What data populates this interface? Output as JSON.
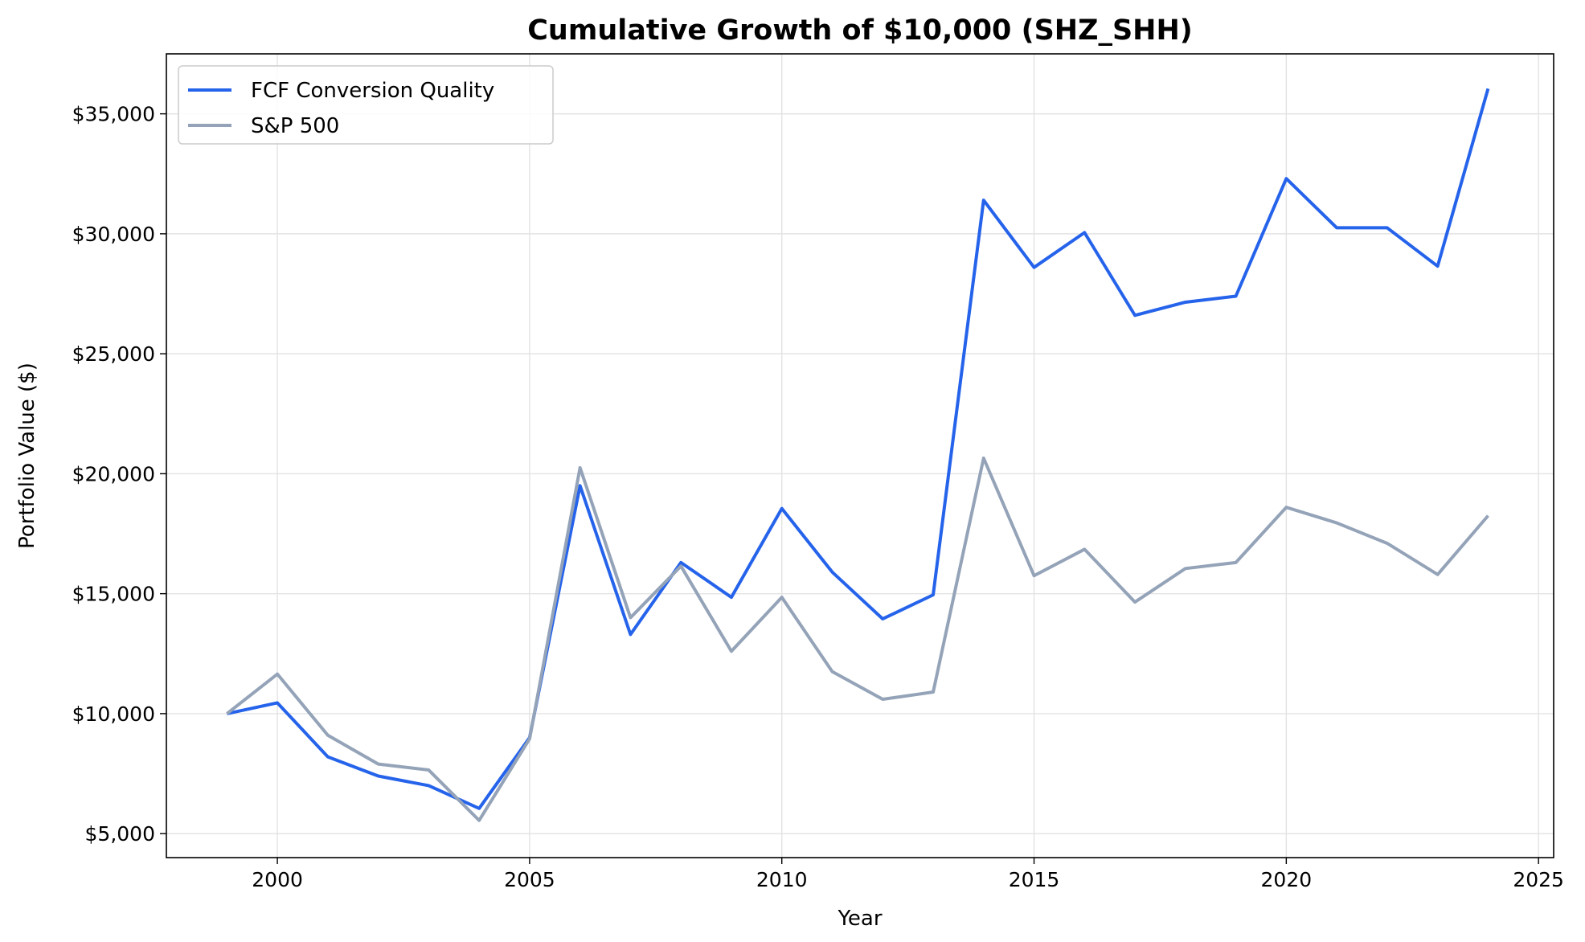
{
  "chart_data": {
    "type": "line",
    "title": "Cumulative Growth of $10,000 (SHZ_SHH)",
    "xlabel": "Year",
    "ylabel": "Portfolio Value ($)",
    "xlim": [
      1997.8,
      2025.3
    ],
    "ylim": [
      4000,
      37500
    ],
    "x_ticks": [
      2000,
      2005,
      2010,
      2015,
      2020,
      2025
    ],
    "x_tick_labels": [
      "2000",
      "2005",
      "2010",
      "2015",
      "2020",
      "2025"
    ],
    "y_ticks": [
      5000,
      10000,
      15000,
      20000,
      25000,
      30000,
      35000
    ],
    "y_tick_labels": [
      "$5,000",
      "$10,000",
      "$15,000",
      "$20,000",
      "$25,000",
      "$30,000",
      "$35,000"
    ],
    "grid": true,
    "legend_position": "top-left",
    "x": [
      1999,
      2000,
      2001,
      2002,
      2003,
      2004,
      2005,
      2006,
      2007,
      2008,
      2009,
      2010,
      2011,
      2012,
      2013,
      2014,
      2015,
      2016,
      2017,
      2018,
      2019,
      2020,
      2021,
      2022,
      2023,
      2024
    ],
    "series": [
      {
        "name": "FCF Conversion Quality",
        "color": "#2563eb",
        "values": [
          10000,
          10450,
          8200,
          7400,
          7000,
          6050,
          9000,
          19500,
          13300,
          16300,
          14850,
          18550,
          15900,
          13950,
          14950,
          31400,
          28600,
          30050,
          26600,
          27150,
          27400,
          32300,
          30250,
          30250,
          28650,
          36050
        ]
      },
      {
        "name": "S&P 500",
        "color": "#94a3b8",
        "values": [
          10000,
          11650,
          9100,
          7900,
          7650,
          5550,
          8950,
          20250,
          14000,
          16150,
          12600,
          14850,
          11750,
          10600,
          10900,
          20650,
          15750,
          16850,
          14650,
          16050,
          16300,
          18600,
          17950,
          17100,
          15800,
          18250
        ]
      }
    ]
  }
}
